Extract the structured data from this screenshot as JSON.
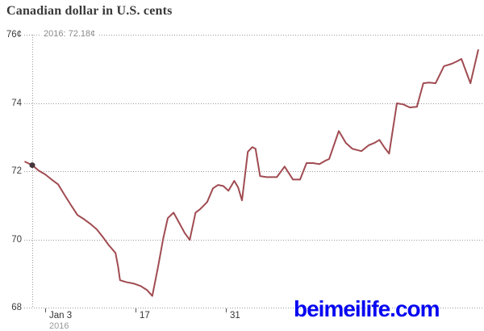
{
  "chart_data": {
    "type": "line",
    "title": "Canadian dollar in U.S. cents",
    "annotation": "2016: 72.18¢",
    "ylim": [
      68,
      76
    ],
    "grid": true,
    "y_ticks": [
      {
        "value": 76,
        "label": "76¢"
      },
      {
        "value": 74,
        "label": "74"
      },
      {
        "value": 72,
        "label": "72"
      },
      {
        "value": 70,
        "label": "70"
      },
      {
        "value": 68,
        "label": "68"
      }
    ],
    "x_ticks": [
      {
        "day": 2,
        "label": "Jan 3"
      },
      {
        "day": 16,
        "label": "17"
      },
      {
        "day": 30,
        "label": "31"
      }
    ],
    "x_sub_label": "2016",
    "start_marker": {
      "day": 0,
      "value": 72.18
    },
    "series": [
      {
        "name": "Canadian dollar in U.S. cents",
        "points": [
          [
            -1.1,
            72.28
          ],
          [
            0,
            72.18
          ],
          [
            1,
            72.02
          ],
          [
            2,
            71.91
          ],
          [
            3,
            71.76
          ],
          [
            4,
            71.62
          ],
          [
            5,
            71.31
          ],
          [
            6,
            71.01
          ],
          [
            7,
            70.72
          ],
          [
            8,
            70.6
          ],
          [
            9,
            70.46
          ],
          [
            10,
            70.3
          ],
          [
            11,
            70.06
          ],
          [
            11.8,
            69.85
          ],
          [
            12.9,
            69.61
          ],
          [
            13.3,
            69.21
          ],
          [
            13.6,
            68.81
          ],
          [
            14.5,
            68.76
          ],
          [
            15.8,
            68.71
          ],
          [
            16.8,
            68.64
          ],
          [
            17.8,
            68.52
          ],
          [
            18.6,
            68.35
          ],
          [
            19.5,
            69.21
          ],
          [
            20.3,
            70.04
          ],
          [
            21,
            70.63
          ],
          [
            21.9,
            70.79
          ],
          [
            22.8,
            70.48
          ],
          [
            23.6,
            70.2
          ],
          [
            24.4,
            69.99
          ],
          [
            25.3,
            70.79
          ],
          [
            26,
            70.89
          ],
          [
            27.1,
            71.1
          ],
          [
            28,
            71.5
          ],
          [
            28.8,
            71.6
          ],
          [
            29.6,
            71.57
          ],
          [
            30.4,
            71.43
          ],
          [
            31.3,
            71.72
          ],
          [
            31.9,
            71.53
          ],
          [
            32.5,
            71.15
          ],
          [
            33.4,
            72.57
          ],
          [
            34.1,
            72.71
          ],
          [
            34.6,
            72.66
          ],
          [
            35.3,
            71.86
          ],
          [
            36.3,
            71.83
          ],
          [
            37.3,
            71.83
          ],
          [
            37.9,
            71.83
          ],
          [
            39.1,
            72.14
          ],
          [
            40.4,
            71.76
          ],
          [
            41.5,
            71.76
          ],
          [
            42.5,
            72.24
          ],
          [
            43.5,
            72.24
          ],
          [
            44.5,
            72.21
          ],
          [
            45.4,
            72.31
          ],
          [
            46,
            72.36
          ],
          [
            47.5,
            73.18
          ],
          [
            48.6,
            72.83
          ],
          [
            49.6,
            72.66
          ],
          [
            51,
            72.59
          ],
          [
            52.1,
            72.76
          ],
          [
            53,
            72.83
          ],
          [
            53.8,
            72.92
          ],
          [
            54.6,
            72.69
          ],
          [
            55.3,
            72.52
          ],
          [
            56.5,
            73.99
          ],
          [
            57.5,
            73.96
          ],
          [
            58.5,
            73.87
          ],
          [
            59.6,
            73.89
          ],
          [
            60.6,
            74.58
          ],
          [
            61.5,
            74.6
          ],
          [
            62.5,
            74.58
          ],
          [
            63.8,
            75.08
          ],
          [
            65,
            75.15
          ],
          [
            65.8,
            75.22
          ],
          [
            66.5,
            75.29
          ],
          [
            67.9,
            74.58
          ],
          [
            69.1,
            75.55
          ]
        ]
      }
    ]
  },
  "colors": {
    "line": "#a04b51",
    "start_marker": "#443539",
    "grid": "#9a9a9a",
    "axis_text": "#3d3d3d",
    "annotation_text": "#8a8a8a",
    "title_text": "#383838",
    "watermark": "#0606f2"
  },
  "watermark": {
    "text": "beimeilife.com"
  }
}
